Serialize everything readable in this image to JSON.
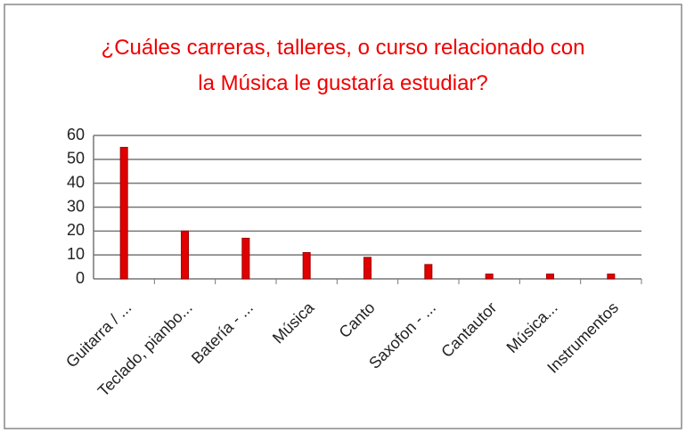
{
  "chart_data": {
    "type": "bar",
    "title": "¿Cuáles carreras, talleres, o curso relacionado con la Música le gustaría estudiar?",
    "categories": [
      "Guitarra / ...",
      "Teclado, pianbo...",
      "Batería - ...",
      "Música",
      "Canto",
      "Saxofon - ...",
      "Cantautor",
      "Música...",
      "Instrumentos"
    ],
    "values": [
      55,
      20,
      17,
      11,
      9,
      6,
      2,
      2,
      2
    ],
    "color": "#e00000",
    "ylim": [
      0,
      60
    ],
    "yticks": [
      0,
      10,
      20,
      30,
      40,
      50,
      60
    ],
    "grid": true
  }
}
